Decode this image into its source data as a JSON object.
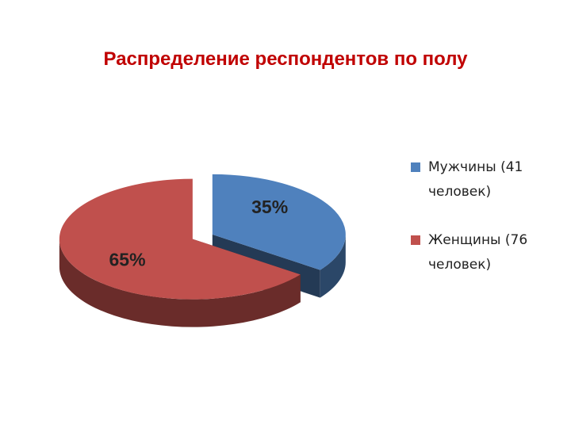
{
  "chart_data": {
    "type": "pie",
    "title": "Распределение респондентов по полу",
    "categories": [
      "Мужчины (41 человек)",
      "Женщины (76 человек)"
    ],
    "values": [
      35,
      65
    ],
    "value_labels": [
      "35%",
      "65%"
    ],
    "colors": [
      "#4f81bd",
      "#c0504d"
    ],
    "legend": "right"
  }
}
